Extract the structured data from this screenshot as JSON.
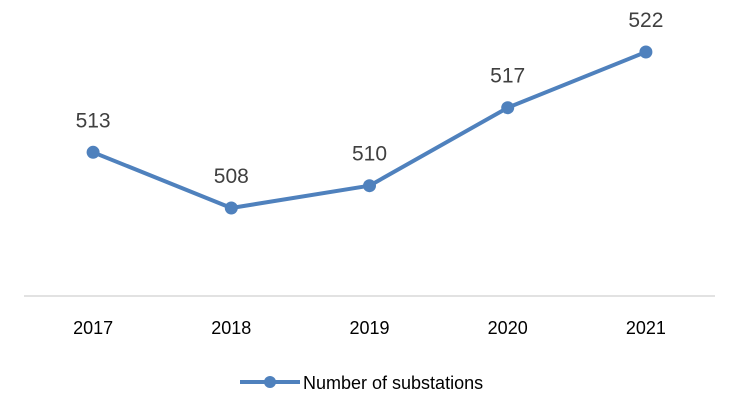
{
  "chart_data": {
    "type": "line",
    "categories": [
      "2017",
      "2018",
      "2019",
      "2020",
      "2021"
    ],
    "series": [
      {
        "name": "Number of substations",
        "values": [
          513,
          508,
          510,
          517,
          522
        ],
        "color": "#4F81BD",
        "marker": "circle"
      }
    ],
    "data_labels": [
      "513",
      "508",
      "510",
      "517",
      "522"
    ],
    "grid": false,
    "legend_position": "bottom",
    "axis_color": "#D9D9D9"
  }
}
